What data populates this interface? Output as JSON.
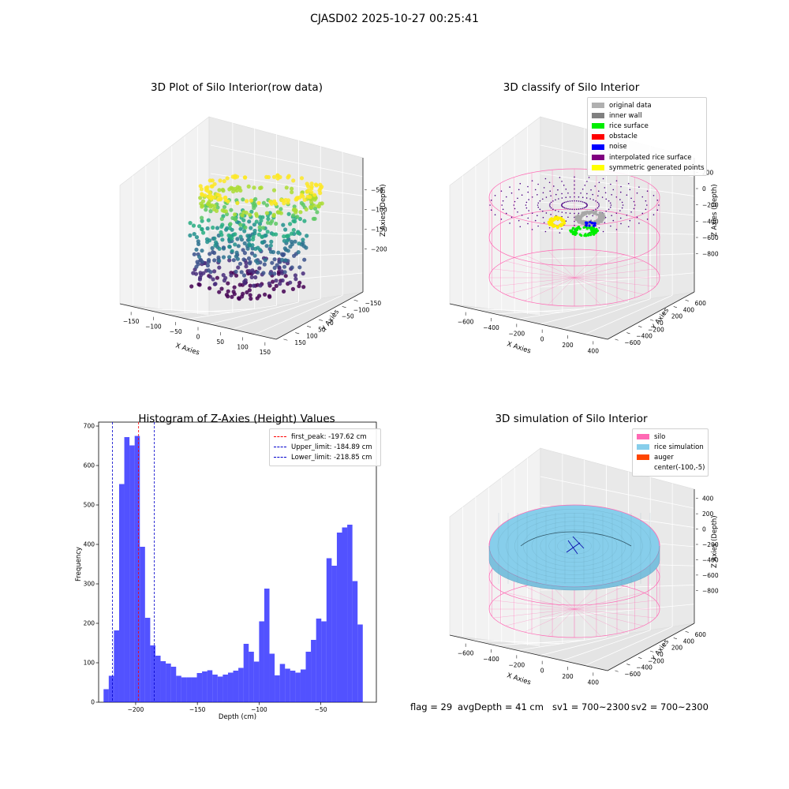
{
  "suptitle": "CJASD02 2025-10-27 00:25:41",
  "panels": {
    "raw": {
      "title": "3D Plot of Silo Interior(row data)",
      "xlabel": "X Axies",
      "ylabel": "Y Axies",
      "zlabel": "Z Axies (Depth)",
      "xticks": [
        "−150",
        "−100",
        "−50",
        "0",
        "50",
        "100",
        "150"
      ],
      "yticks": [
        "−150",
        "−100",
        "−50",
        "0",
        "50",
        "100",
        "150"
      ],
      "zticks": [
        "−50",
        "−100",
        "−150",
        "−200"
      ]
    },
    "classify": {
      "title": "3D classify of Silo Interior",
      "xlabel": "X Axies",
      "ylabel": "Y Axies",
      "zlabel": "Z Axies (Depth)",
      "xticks": [
        "−600",
        "−400",
        "−200",
        "0",
        "200",
        "400"
      ],
      "yticks": [
        "600",
        "400",
        "200",
        "0",
        "−200",
        "−400",
        "−600"
      ],
      "zticks": [
        "200",
        "0",
        "−200",
        "−400",
        "−600",
        "−800"
      ],
      "legend": [
        {
          "label": "original data",
          "color": "#b0b0b0"
        },
        {
          "label": "inner wall",
          "color": "#808080"
        },
        {
          "label": "rice surface",
          "color": "#00ee00"
        },
        {
          "label": "obstacle",
          "color": "#ff0000"
        },
        {
          "label": "noise",
          "color": "#0000ff"
        },
        {
          "label": "interpolated rice surface",
          "color": "#800080"
        },
        {
          "label": "symmetric generated points",
          "color": "#ffff00"
        }
      ]
    },
    "simulation": {
      "title": "3D simulation of Silo Interior",
      "xlabel": "X Axies",
      "ylabel": "Y Axies",
      "zlabel": "Z Axies (Depth)",
      "xticks": [
        "−600",
        "−400",
        "−200",
        "0",
        "200",
        "400"
      ],
      "yticks": [
        "600",
        "400",
        "200",
        "0",
        "−200",
        "−400",
        "−600"
      ],
      "zticks": [
        "400",
        "200",
        "0",
        "−200",
        "−400",
        "−600",
        "−800"
      ],
      "legend": [
        {
          "label": "silo",
          "color": "#ff69b4"
        },
        {
          "label": "rice simulation",
          "color": "#87ceeb"
        },
        {
          "label": "auger",
          "color": "#ff4500"
        },
        {
          "label": "center(-100,-5)",
          "color": ""
        }
      ]
    }
  },
  "status": {
    "flag": "flag = 29",
    "avg": "avgDepth = 41 cm",
    "sv1": "sv1 = 700~2300",
    "sv2": "sv2 = 700~2300"
  },
  "chart_data": [
    {
      "type": "bar",
      "title": "Histogram of Z-Axies (Height) Values",
      "xlabel": "Depth (cm)",
      "ylabel": "Frequency",
      "xlim": [
        -230,
        -5
      ],
      "ylim": [
        0,
        710
      ],
      "xticks": [
        -200,
        -150,
        -100,
        -50
      ],
      "yticks": [
        0,
        100,
        200,
        300,
        400,
        500,
        600,
        700
      ],
      "bar_color": "#0000ff",
      "bin_edges_start": -226,
      "bin_width": 4.2,
      "values": [
        33,
        67,
        182,
        553,
        672,
        651,
        675,
        394,
        214,
        144,
        118,
        104,
        98,
        90,
        67,
        63,
        63,
        63,
        74,
        78,
        81,
        70,
        65,
        70,
        75,
        80,
        87,
        148,
        128,
        103,
        205,
        288,
        123,
        68,
        97,
        85,
        80,
        75,
        83,
        128,
        158,
        212,
        205,
        365,
        346,
        430,
        443,
        450,
        307,
        197
      ],
      "vlines": [
        {
          "label": "first_peak: -197.62 cm",
          "x": -197.62,
          "color": "#ff0000"
        },
        {
          "label": "Upper_limit: -184.89 cm",
          "x": -184.89,
          "color": "#0000cc"
        },
        {
          "label": "Lower_limit: -218.85 cm",
          "x": -218.85,
          "color": "#0000cc"
        }
      ],
      "legend_loc": "upper right"
    }
  ]
}
